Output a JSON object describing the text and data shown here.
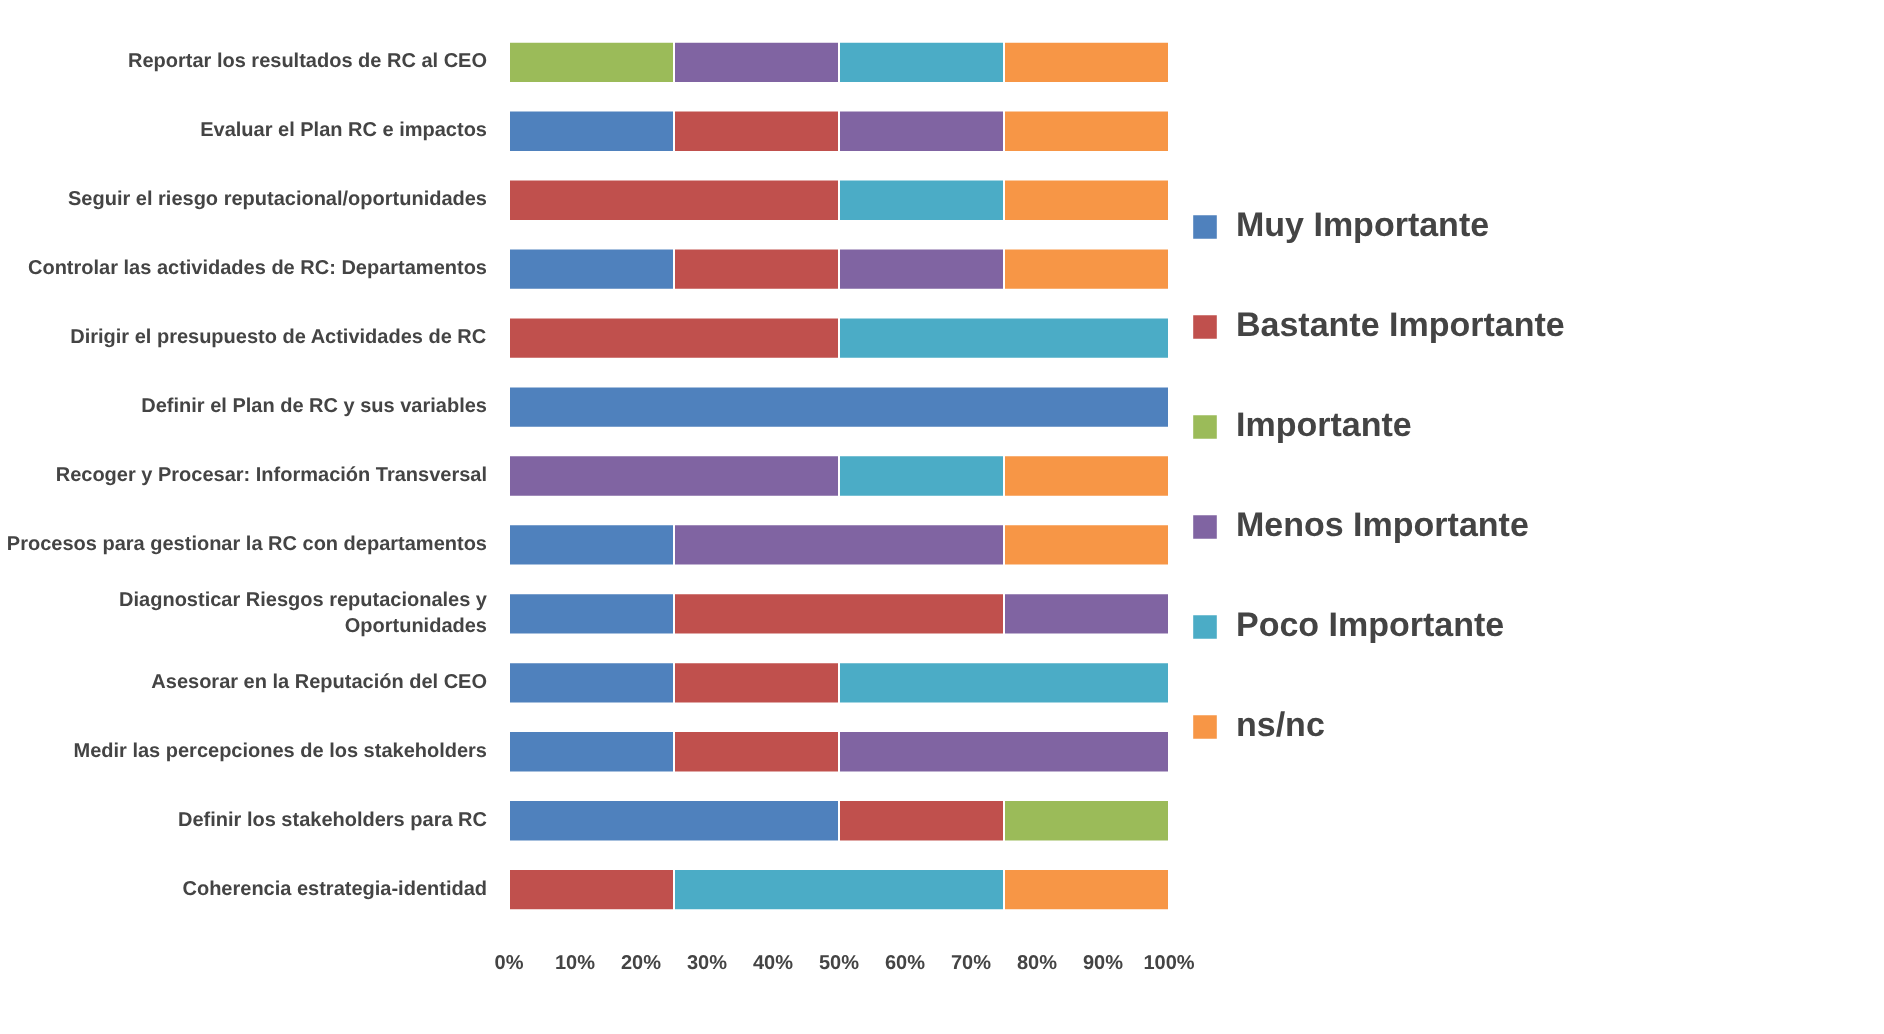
{
  "chart_data": {
    "type": "bar",
    "orientation": "horizontal",
    "stacked": true,
    "categories": [
      "Reportar los resultados de RC al CEO",
      "Evaluar el Plan RC e impactos",
      "Seguir el riesgo reputacional/oportunidades",
      "Controlar las actividades de RC: Departamentos",
      "Dirigir el presupuesto de Actividades de RC",
      "Definir el Plan de RC y sus variables",
      "Recoger y Procesar: Información Transversal",
      "Procesos para gestionar la RC con departamentos",
      "Diagnosticar Riesgos reputacionales y Oportunidades",
      "Asesorar en la Reputación del CEO",
      "Medir las percepciones de los stakeholders",
      "Definir los stakeholders para RC",
      "Coherencia estrategia-identidad"
    ],
    "series": [
      {
        "name": "Muy Importante",
        "color": "#4f81bd",
        "values": [
          0,
          25,
          0,
          25,
          0,
          100,
          0,
          25,
          25,
          25,
          25,
          50,
          0
        ]
      },
      {
        "name": "Bastante Importante",
        "color": "#c0504d",
        "values": [
          0,
          25,
          50,
          25,
          50,
          0,
          0,
          0,
          50,
          25,
          25,
          25,
          25
        ]
      },
      {
        "name": "Importante",
        "color": "#9bbb59",
        "values": [
          25,
          0,
          0,
          0,
          0,
          0,
          0,
          0,
          0,
          0,
          0,
          25,
          0
        ]
      },
      {
        "name": "Menos Importante",
        "color": "#8064a2",
        "values": [
          25,
          25,
          0,
          25,
          0,
          0,
          50,
          50,
          25,
          0,
          50,
          0,
          0
        ]
      },
      {
        "name": "Poco Importante",
        "color": "#4bacc6",
        "values": [
          25,
          0,
          25,
          0,
          50,
          0,
          25,
          0,
          0,
          50,
          0,
          0,
          50
        ]
      },
      {
        "name": "ns/nc",
        "color": "#f79646",
        "values": [
          25,
          25,
          25,
          25,
          0,
          0,
          25,
          25,
          0,
          0,
          0,
          0,
          25
        ]
      }
    ],
    "xlim": [
      0,
      100
    ],
    "xticks": [
      {
        "value": 0,
        "label": "0%"
      },
      {
        "value": 10,
        "label": "10%"
      },
      {
        "value": 20,
        "label": "20%"
      },
      {
        "value": 30,
        "label": "30%"
      },
      {
        "value": 40,
        "label": "40%"
      },
      {
        "value": 50,
        "label": "50%"
      },
      {
        "value": 60,
        "label": "60%"
      },
      {
        "value": 70,
        "label": "70%"
      },
      {
        "value": 80,
        "label": "80%"
      },
      {
        "value": 90,
        "label": "90%"
      },
      {
        "value": 100,
        "label": "100%"
      }
    ],
    "grid": false,
    "legend": "right"
  }
}
